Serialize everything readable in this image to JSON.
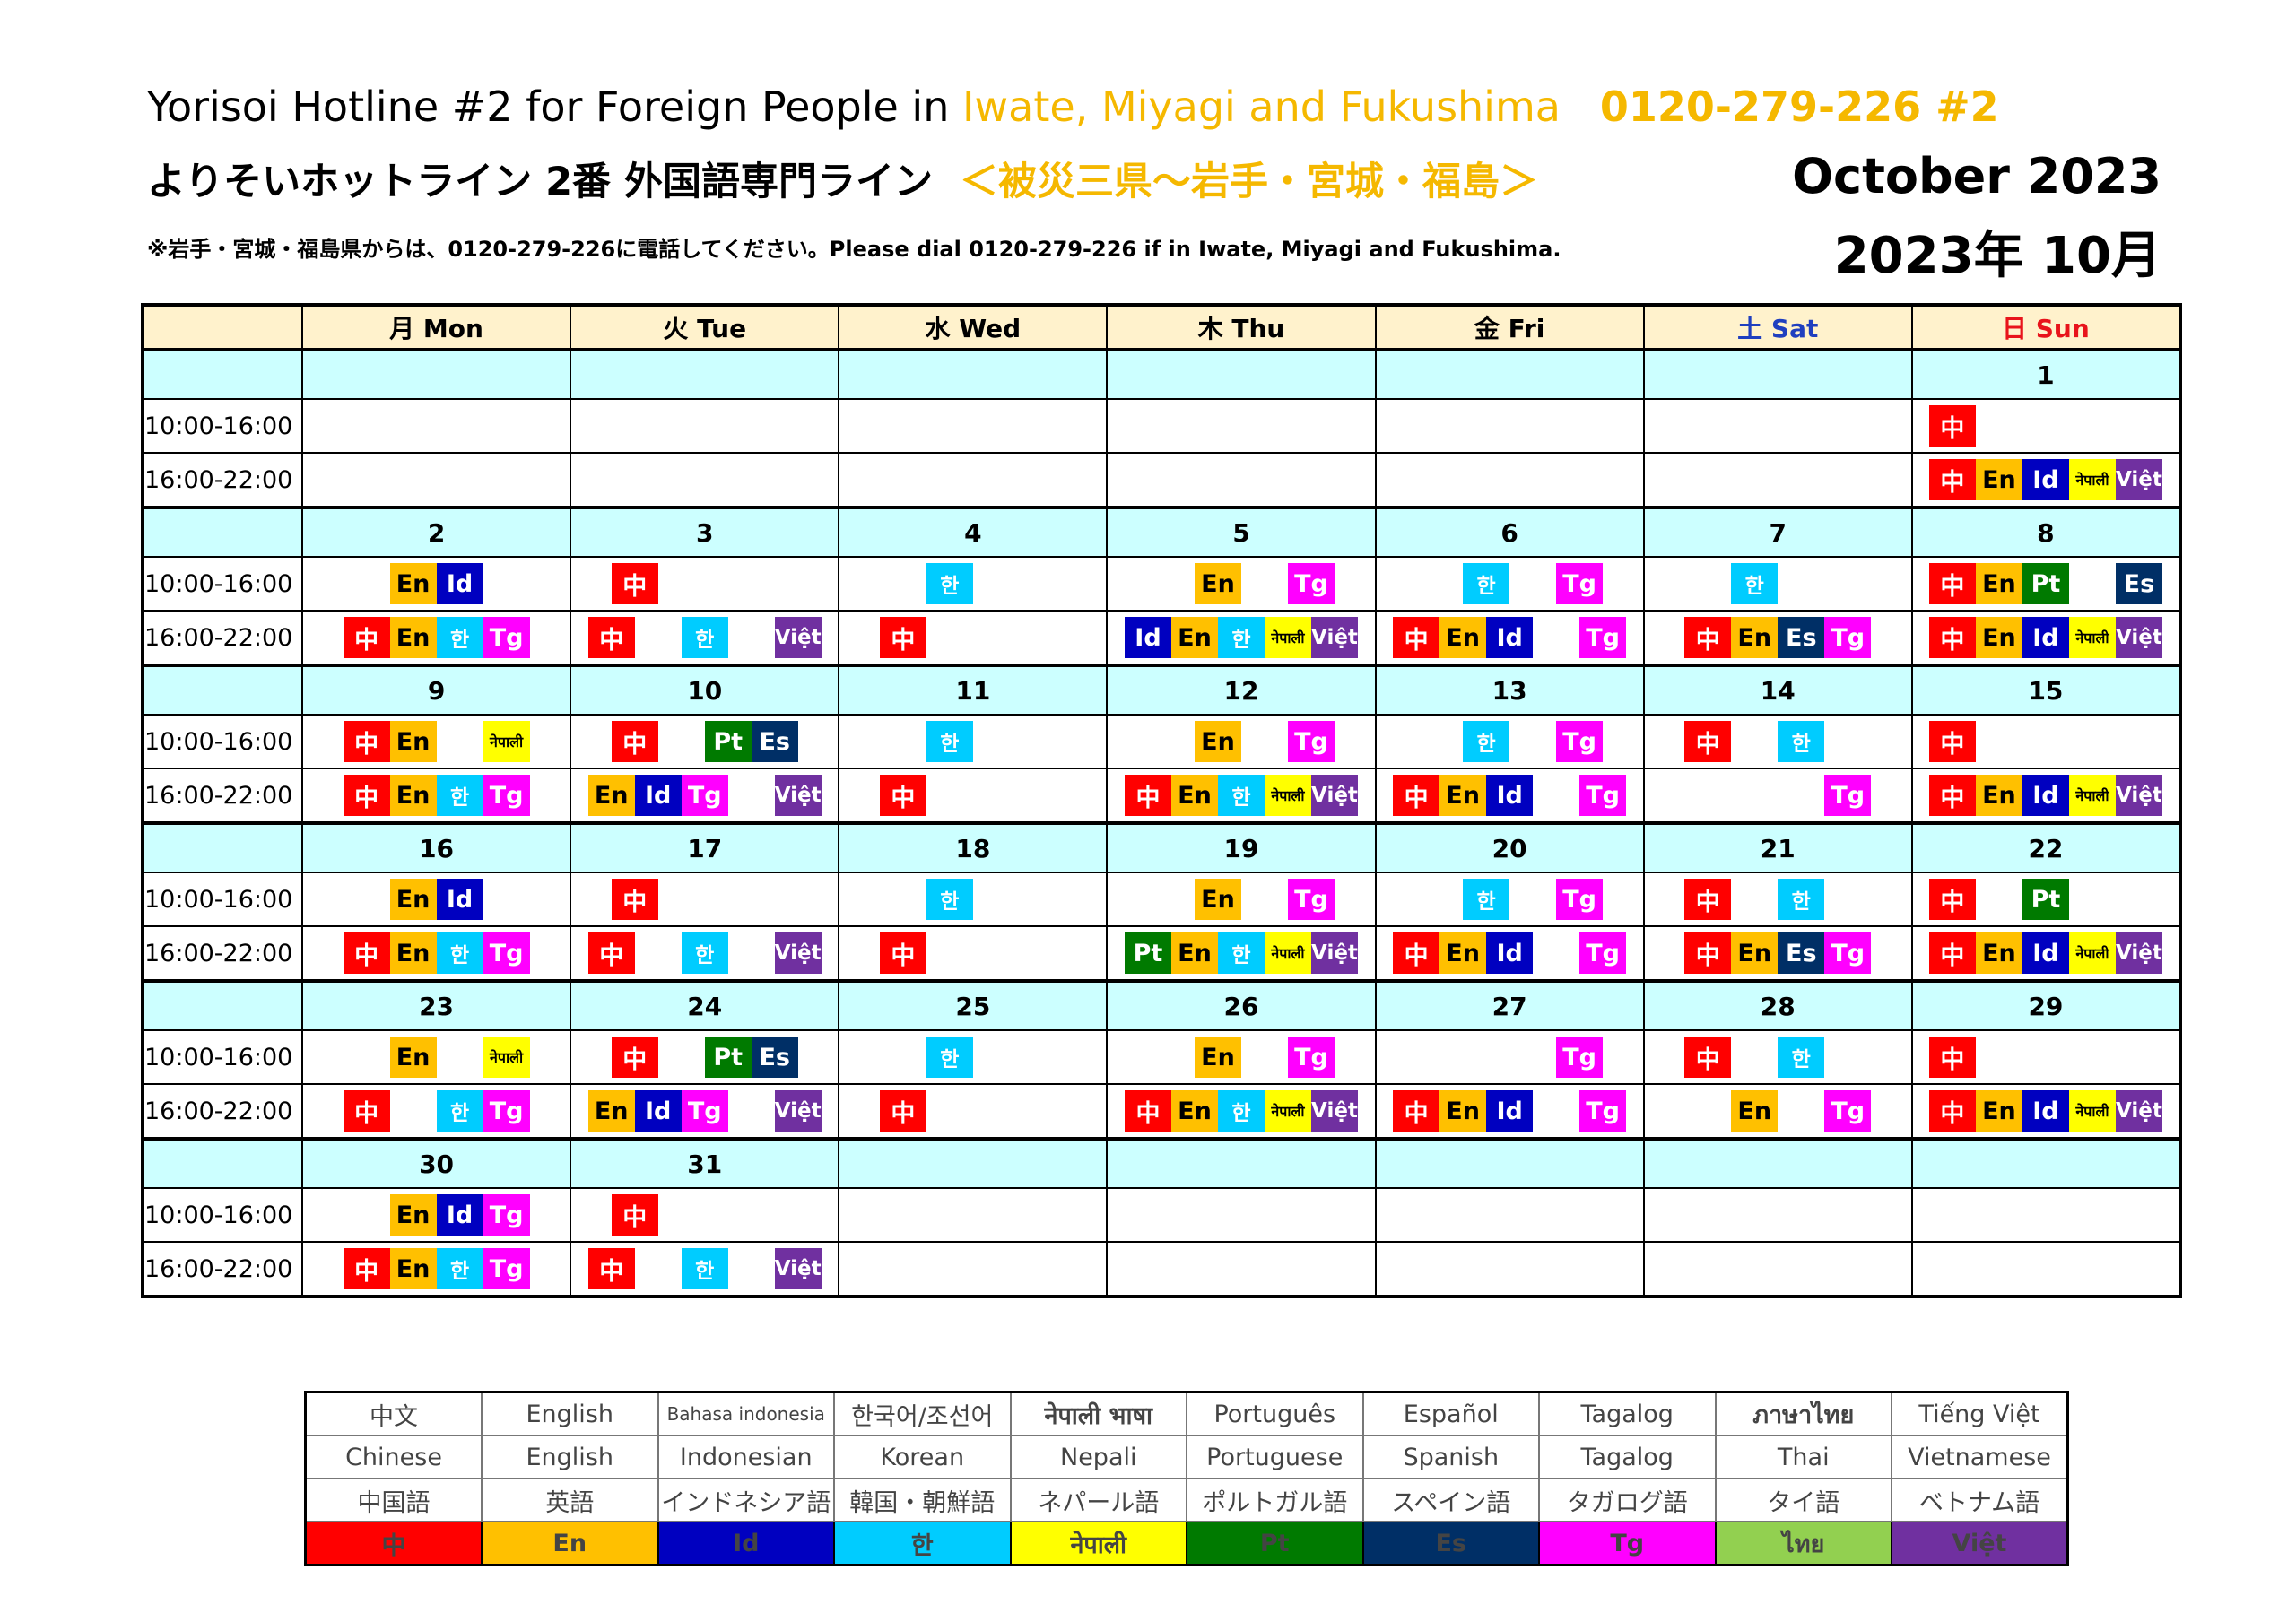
{
  "header": {
    "line1_main": "Yorisoi Hotline #2 for Foreign People  in ",
    "line1_region": "Iwate, Miyagi and Fukushima",
    "line1_phone": "0120-279-226 #2",
    "line2_main": "よりそいホットライン  2番 外国語専門ライン",
    "line2_region": "＜被災三県～岩手・宮城・福島＞",
    "line3": "※岩手・宮城・福島県からは、0120-279-226に電話してください。Please dial 0120-279-226 if in Iwate, Miyagi and Fukushima.",
    "month_en": "October  2023",
    "month_jp": "2023年 10月"
  },
  "calendar": {
    "weekdays": [
      "月 Mon",
      "火 Tue",
      "水 Wed",
      "木 Thu",
      "金 Fri",
      "土 Sat",
      "日 Sun"
    ],
    "time_slots": [
      "10:00-16:00",
      "16:00-22:00"
    ],
    "weeks": [
      {
        "dates": [
          "",
          "",
          "",
          "",
          "",
          "",
          "1"
        ],
        "am": [
          [],
          [],
          [],
          [],
          [],
          [],
          [
            "zh",
            "",
            "",
            "",
            ""
          ]
        ],
        "pm": [
          [],
          [],
          [],
          [],
          [],
          [],
          [
            "zh",
            "en",
            "id",
            "ne",
            "vi"
          ]
        ]
      },
      {
        "dates": [
          "2",
          "3",
          "4",
          "5",
          "6",
          "7",
          "8"
        ],
        "am": [
          [
            "",
            "en",
            "id",
            ""
          ],
          [
            "zh",
            "",
            "",
            ""
          ],
          [
            "",
            "ko",
            "",
            ""
          ],
          [
            "",
            "en",
            "",
            "tg"
          ],
          [
            "",
            "ko",
            "",
            "tg"
          ],
          [
            "",
            "ko",
            "",
            ""
          ],
          [
            "zh",
            "en",
            "pt",
            "",
            "es"
          ]
        ],
        "pm": [
          [
            "zh",
            "en",
            "ko",
            "tg"
          ],
          [
            "zh",
            "",
            "ko",
            "",
            "vi"
          ],
          [
            "zh",
            "",
            "",
            ""
          ],
          [
            "id",
            "en",
            "ko",
            "ne",
            "vi"
          ],
          [
            "zh",
            "en",
            "id",
            "",
            "tg"
          ],
          [
            "zh",
            "en",
            "es",
            "tg"
          ],
          [
            "zh",
            "en",
            "id",
            "ne",
            "vi"
          ]
        ]
      },
      {
        "dates": [
          "9",
          "10",
          "11",
          "12",
          "13",
          "14",
          "15"
        ],
        "am": [
          [
            "zh",
            "en",
            "",
            "ne"
          ],
          [
            "zh",
            "",
            "pt",
            "es"
          ],
          [
            "",
            "ko",
            "",
            ""
          ],
          [
            "",
            "en",
            "",
            "tg"
          ],
          [
            "",
            "ko",
            "",
            "tg"
          ],
          [
            "zh",
            "",
            "ko",
            ""
          ],
          [
            "zh",
            "",
            "",
            "",
            ""
          ]
        ],
        "pm": [
          [
            "zh",
            "en",
            "ko",
            "tg"
          ],
          [
            "en",
            "id",
            "tg",
            "",
            "vi"
          ],
          [
            "zh",
            "",
            "",
            ""
          ],
          [
            "zh",
            "en",
            "ko",
            "ne",
            "vi"
          ],
          [
            "zh",
            "en",
            "id",
            "",
            "tg"
          ],
          [
            "",
            "",
            "",
            "tg"
          ],
          [
            "zh",
            "en",
            "id",
            "ne",
            "vi"
          ]
        ]
      },
      {
        "dates": [
          "16",
          "17",
          "18",
          "19",
          "20",
          "21",
          "22"
        ],
        "am": [
          [
            "",
            "en",
            "id",
            ""
          ],
          [
            "zh",
            "",
            "",
            ""
          ],
          [
            "",
            "ko",
            "",
            ""
          ],
          [
            "",
            "en",
            "",
            "tg"
          ],
          [
            "",
            "ko",
            "",
            "tg"
          ],
          [
            "zh",
            "",
            "ko",
            ""
          ],
          [
            "zh",
            "",
            "pt",
            "",
            ""
          ]
        ],
        "pm": [
          [
            "zh",
            "en",
            "ko",
            "tg"
          ],
          [
            "zh",
            "",
            "ko",
            "",
            "vi"
          ],
          [
            "zh",
            "",
            "",
            ""
          ],
          [
            "pt",
            "en",
            "ko",
            "ne",
            "vi"
          ],
          [
            "zh",
            "en",
            "id",
            "",
            "tg"
          ],
          [
            "zh",
            "en",
            "es",
            "tg"
          ],
          [
            "zh",
            "en",
            "id",
            "ne",
            "vi"
          ]
        ]
      },
      {
        "dates": [
          "23",
          "24",
          "25",
          "26",
          "27",
          "28",
          "29"
        ],
        "am": [
          [
            "",
            "en",
            "",
            "ne"
          ],
          [
            "zh",
            "",
            "pt",
            "es"
          ],
          [
            "",
            "ko",
            "",
            ""
          ],
          [
            "",
            "en",
            "",
            "tg"
          ],
          [
            "",
            "",
            "",
            "tg"
          ],
          [
            "zh",
            "",
            "ko",
            ""
          ],
          [
            "zh",
            "",
            "",
            "",
            ""
          ]
        ],
        "pm": [
          [
            "zh",
            "",
            "ko",
            "tg"
          ],
          [
            "en",
            "id",
            "tg",
            "",
            "vi"
          ],
          [
            "zh",
            "",
            "",
            ""
          ],
          [
            "zh",
            "en",
            "ko",
            "ne",
            "vi"
          ],
          [
            "zh",
            "en",
            "id",
            "",
            "tg"
          ],
          [
            "",
            "en",
            "",
            "tg"
          ],
          [
            "zh",
            "en",
            "id",
            "ne",
            "vi"
          ]
        ]
      },
      {
        "dates": [
          "30",
          "31",
          "",
          "",
          "",
          "",
          ""
        ],
        "am": [
          [
            "",
            "en",
            "id",
            "tg"
          ],
          [
            "zh",
            "",
            "",
            ""
          ],
          [],
          [],
          [],
          [],
          []
        ],
        "pm": [
          [
            "zh",
            "en",
            "ko",
            "tg"
          ],
          [
            "zh",
            "",
            "ko",
            "",
            "vi"
          ],
          [],
          [],
          [],
          [],
          []
        ]
      }
    ]
  },
  "badges": {
    "zh": "中",
    "en": "En",
    "id": "Id",
    "ko": "한",
    "ne": "नेपाली",
    "pt": "Pt",
    "es": "Es",
    "tg": "Tg",
    "th": "ไทย",
    "vi": "Việt"
  },
  "legend": {
    "native": [
      "中文",
      "English",
      "Bahasa indonesia",
      "한국어/조선어",
      "नेपाली भाषा",
      "Português",
      "Español",
      "Tagalog",
      "ภาษาไทย",
      "Tiếng Việt"
    ],
    "english": [
      "Chinese",
      "English",
      "Indonesian",
      "Korean",
      "Nepali",
      "Portuguese",
      "Spanish",
      "Tagalog",
      "Thai",
      "Vietnamese"
    ],
    "japanese": [
      "中国語",
      "英語",
      "インドネシア語",
      "韓国・朝鮮語",
      "ネパール語",
      "ポルトガル語",
      "スペイン語",
      "タガログ語",
      "タイ語",
      "ベトナム語"
    ],
    "codes": [
      "zh",
      "en",
      "id",
      "ko",
      "ne",
      "pt",
      "es",
      "tg",
      "th",
      "vi"
    ]
  },
  "colors": {
    "zh": "#ff0000",
    "en": "#ffc000",
    "id": "#0000c0",
    "ko": "#00ccff",
    "ne": "#ffff00",
    "pt": "#007a00",
    "es": "#002f66",
    "tg": "#ff00ff",
    "th": "#92d050",
    "vi": "#7030a0",
    "header_band": "#fff2cc",
    "date_band": "#ccffff",
    "accent_orange": "#f5b800"
  }
}
